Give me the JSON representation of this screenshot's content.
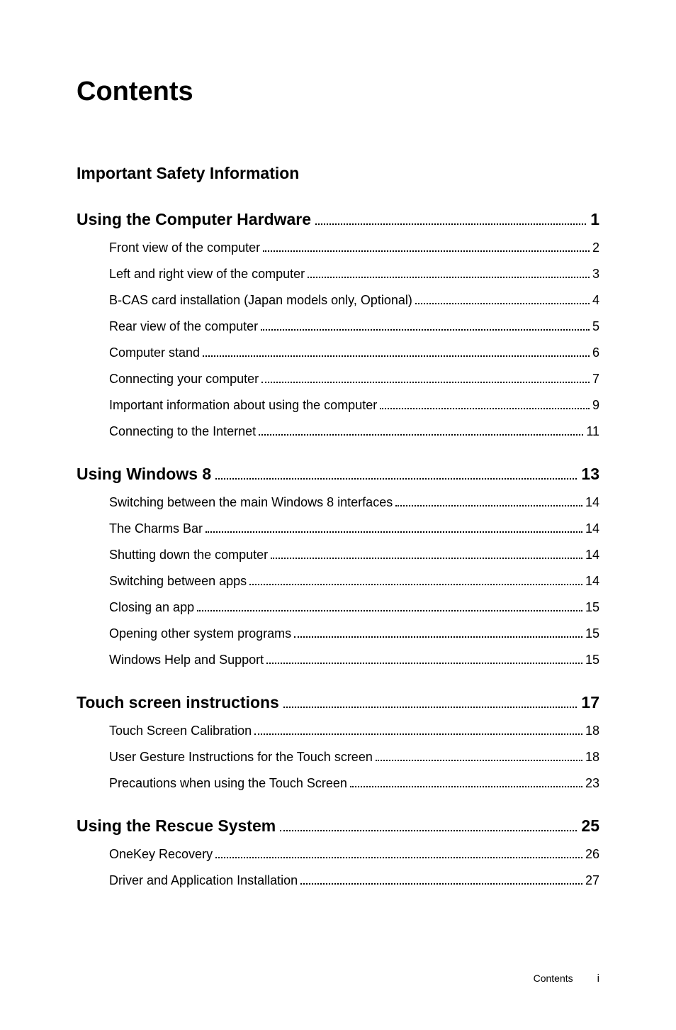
{
  "page_title": "Contents",
  "sections": [
    {
      "title": "Important Safety Information",
      "page": null,
      "plain": true,
      "items": []
    },
    {
      "title": "Using the Computer Hardware",
      "page": "1",
      "items": [
        {
          "title": "Front view of the computer",
          "page": "2"
        },
        {
          "title": "Left and right view of the computer",
          "page": "3"
        },
        {
          "title": "B-CAS card installation (Japan models only, Optional)",
          "page": "4"
        },
        {
          "title": "Rear view of the computer",
          "page": "5"
        },
        {
          "title": "Computer stand",
          "page": "6"
        },
        {
          "title": "Connecting your computer",
          "page": "7"
        },
        {
          "title": "Important information about using the computer",
          "page": "9"
        },
        {
          "title": "Connecting to the Internet",
          "page": "11"
        }
      ]
    },
    {
      "title": "Using Windows 8",
      "page": "13",
      "items": [
        {
          "title": "Switching between the main Windows 8 interfaces",
          "page": "14"
        },
        {
          "title": "The Charms Bar",
          "page": "14"
        },
        {
          "title": "Shutting down the computer",
          "page": "14"
        },
        {
          "title": "Switching between apps",
          "page": "14"
        },
        {
          "title": "Closing an app",
          "page": "15"
        },
        {
          "title": "Opening other system programs",
          "page": "15"
        },
        {
          "title": "Windows Help and Support",
          "page": "15"
        }
      ]
    },
    {
      "title": "Touch screen instructions",
      "page": "17",
      "items": [
        {
          "title": "Touch Screen Calibration",
          "page": "18"
        },
        {
          "title": "User Gesture Instructions for the Touch screen",
          "page": "18"
        },
        {
          "title": "Precautions when using the Touch Screen",
          "page": "23"
        }
      ]
    },
    {
      "title": "Using the Rescue System",
      "page": "25",
      "items": [
        {
          "title": "OneKey Recovery",
          "page": "26"
        },
        {
          "title": "Driver and Application Installation",
          "page": "27"
        }
      ]
    }
  ],
  "footer": {
    "label": "Contents",
    "page": "i"
  }
}
